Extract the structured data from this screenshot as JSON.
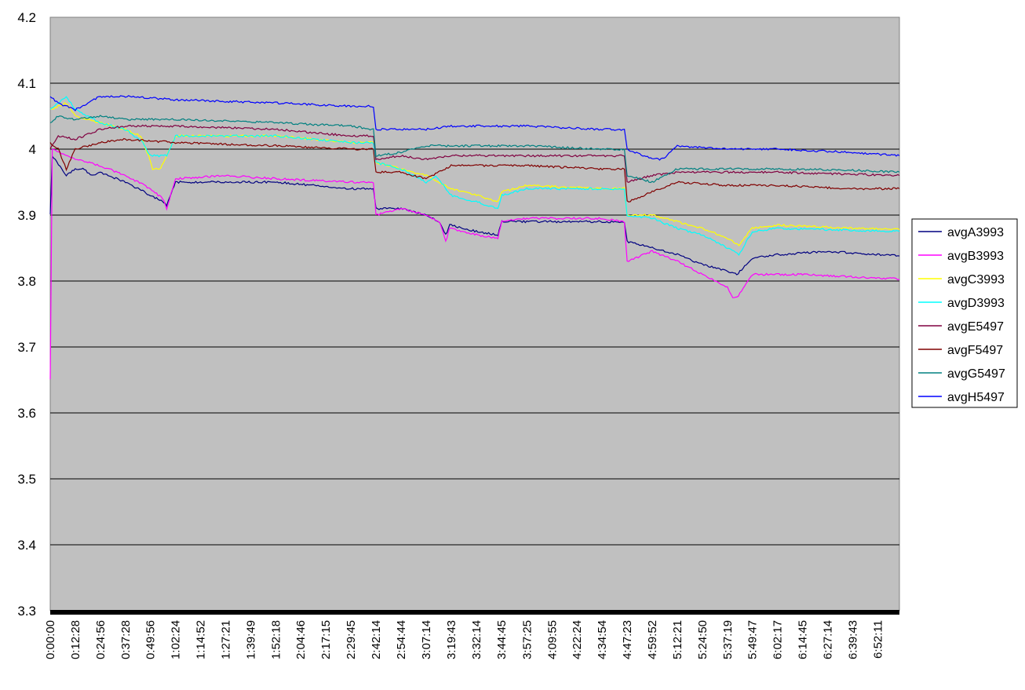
{
  "chart_data": {
    "type": "line",
    "title": "",
    "xlabel": "",
    "ylabel": "",
    "ylim": [
      3.3,
      4.2
    ],
    "y_ticks": [
      "4.2",
      "4.1",
      "4",
      "3.9",
      "3.8",
      "3.7",
      "3.6",
      "3.5",
      "3.4",
      "3.3"
    ],
    "y_tick_values": [
      4.2,
      4.1,
      4.0,
      3.9,
      3.8,
      3.7,
      3.6,
      3.5,
      3.4,
      3.3
    ],
    "x_ticks": [
      "0:00:00",
      "0:12:28",
      "0:24:56",
      "0:37:28",
      "0:49:56",
      "1:02:24",
      "1:14:52",
      "1:27:21",
      "1:39:49",
      "1:52:18",
      "2:04:46",
      "2:17:15",
      "2:29:45",
      "2:42:14",
      "2:54:44",
      "3:07:14",
      "3:19:43",
      "3:32:14",
      "3:44:45",
      "3:57:25",
      "4:09:55",
      "4:22:24",
      "4:34:54",
      "4:47:23",
      "4:59:52",
      "5:12:21",
      "5:24:50",
      "5:37:19",
      "5:49:47",
      "6:02:17",
      "6:14:45",
      "6:27:14",
      "6:39:43",
      "6:52:11"
    ],
    "x_end": "7:03:00",
    "grid": "horizontal",
    "plot_background": "#c0c0c0",
    "legend_position": "right",
    "series": [
      {
        "name": "avgA3993",
        "color": "#000080",
        "x": [
          "0:00:00",
          "0:01:00",
          "0:08:00",
          "0:12:28",
          "0:17:00",
          "0:20:00",
          "0:24:56",
          "0:37:28",
          "0:49:56",
          "0:56:00",
          "0:58:00",
          "1:02:24",
          "1:14:52",
          "1:52:18",
          "2:29:45",
          "2:41:00",
          "2:42:14",
          "2:54:44",
          "3:07:14",
          "3:14:00",
          "3:17:00",
          "3:19:00",
          "3:32:14",
          "3:43:00",
          "3:45:00",
          "3:57:25",
          "4:34:54",
          "4:46:00",
          "4:47:23",
          "4:59:52",
          "5:12:21",
          "5:24:50",
          "5:37:19",
          "5:42:00",
          "5:49:47",
          "6:02:17",
          "6:27:14",
          "7:03:00"
        ],
        "y": [
          3.9,
          3.99,
          3.96,
          3.97,
          3.97,
          3.96,
          3.965,
          3.95,
          3.93,
          3.92,
          3.915,
          3.95,
          3.95,
          3.95,
          3.94,
          3.94,
          3.91,
          3.91,
          3.9,
          3.89,
          3.87,
          3.885,
          3.875,
          3.87,
          3.89,
          3.89,
          3.89,
          3.89,
          3.86,
          3.85,
          3.84,
          3.825,
          3.815,
          3.81,
          3.835,
          3.84,
          3.845,
          3.838
        ]
      },
      {
        "name": "avgB3993",
        "color": "#ff00ff",
        "x": [
          "0:00:00",
          "0:01:00",
          "0:08:00",
          "0:12:28",
          "0:24:56",
          "0:37:28",
          "0:49:56",
          "0:56:00",
          "0:58:00",
          "1:02:24",
          "1:27:21",
          "1:52:18",
          "2:29:45",
          "2:41:00",
          "2:42:14",
          "2:54:44",
          "3:07:14",
          "3:14:00",
          "3:17:00",
          "3:19:00",
          "3:32:14",
          "3:43:00",
          "3:45:00",
          "3:57:25",
          "4:34:54",
          "4:46:00",
          "4:47:23",
          "4:59:52",
          "5:12:21",
          "5:24:50",
          "5:37:19",
          "5:40:00",
          "5:42:00",
          "5:49:47",
          "6:14:45",
          "7:03:00"
        ],
        "y": [
          3.65,
          4.0,
          3.99,
          3.985,
          3.975,
          3.96,
          3.94,
          3.925,
          3.91,
          3.955,
          3.96,
          3.955,
          3.95,
          3.95,
          3.9,
          3.91,
          3.9,
          3.89,
          3.86,
          3.88,
          3.87,
          3.865,
          3.89,
          3.895,
          3.895,
          3.89,
          3.83,
          3.845,
          3.83,
          3.81,
          3.79,
          3.775,
          3.775,
          3.81,
          3.81,
          3.803
        ]
      },
      {
        "name": "avgC3993",
        "color": "#ffff00",
        "x": [
          "0:00:00",
          "0:08:00",
          "0:12:28",
          "0:24:56",
          "0:37:28",
          "0:45:00",
          "0:49:00",
          "0:51:00",
          "0:55:00",
          "0:58:00",
          "1:02:24",
          "1:14:52",
          "1:52:18",
          "2:29:45",
          "2:41:00",
          "2:42:14",
          "2:54:44",
          "3:07:14",
          "3:19:43",
          "3:32:14",
          "3:43:00",
          "3:45:00",
          "3:57:25",
          "4:34:54",
          "4:46:00",
          "4:47:23",
          "4:59:52",
          "5:12:21",
          "5:24:50",
          "5:37:19",
          "5:43:00",
          "5:49:47",
          "6:02:17",
          "6:39:43",
          "7:03:00"
        ],
        "y": [
          4.06,
          4.07,
          4.05,
          4.04,
          4.03,
          4.02,
          3.99,
          3.97,
          3.97,
          3.99,
          4.02,
          4.02,
          4.02,
          4.01,
          4.01,
          3.98,
          3.97,
          3.96,
          3.94,
          3.93,
          3.92,
          3.935,
          3.945,
          3.94,
          3.94,
          3.9,
          3.9,
          3.89,
          3.88,
          3.865,
          3.855,
          3.88,
          3.885,
          3.88,
          3.878
        ]
      },
      {
        "name": "avgD3993",
        "color": "#00ffff",
        "x": [
          "0:00:00",
          "0:08:00",
          "0:12:28",
          "0:24:56",
          "0:37:28",
          "0:46:00",
          "0:49:56",
          "0:51:00",
          "0:55:00",
          "0:58:00",
          "1:02:24",
          "1:14:52",
          "1:52:18",
          "2:29:45",
          "2:41:00",
          "2:42:14",
          "2:54:44",
          "3:07:14",
          "3:12:00",
          "3:19:43",
          "3:32:14",
          "3:43:00",
          "3:45:00",
          "3:57:25",
          "4:34:54",
          "4:46:00",
          "4:47:23",
          "4:59:52",
          "5:12:21",
          "5:24:50",
          "5:37:19",
          "5:43:00",
          "5:49:47",
          "6:02:17",
          "6:39:43",
          "7:03:00"
        ],
        "y": [
          4.06,
          4.08,
          4.06,
          4.04,
          4.03,
          4.01,
          3.99,
          3.99,
          3.99,
          3.99,
          4.02,
          4.02,
          4.02,
          4.01,
          4.01,
          3.98,
          3.97,
          3.95,
          3.96,
          3.93,
          3.92,
          3.91,
          3.93,
          3.94,
          3.94,
          3.94,
          3.9,
          3.895,
          3.88,
          3.87,
          3.85,
          3.84,
          3.875,
          3.88,
          3.877,
          3.875
        ]
      },
      {
        "name": "avgE5497",
        "color": "#800040",
        "x": [
          "0:00:00",
          "0:04:00",
          "0:12:28",
          "0:24:56",
          "0:37:28",
          "1:02:24",
          "1:52:18",
          "2:29:45",
          "2:41:00",
          "2:42:14",
          "2:54:44",
          "3:07:14",
          "3:19:43",
          "3:57:25",
          "4:34:54",
          "4:46:00",
          "4:47:23",
          "4:59:52",
          "5:12:21",
          "5:37:19",
          "6:02:17",
          "6:39:43",
          "7:03:00"
        ],
        "y": [
          4.0,
          4.02,
          4.015,
          4.03,
          4.035,
          4.035,
          4.03,
          4.02,
          4.02,
          3.985,
          3.99,
          3.985,
          3.99,
          3.99,
          3.99,
          3.99,
          3.95,
          3.96,
          3.965,
          3.965,
          3.965,
          3.962,
          3.96
        ]
      },
      {
        "name": "avgF5497",
        "color": "#800000",
        "x": [
          "0:00:00",
          "0:04:00",
          "0:08:00",
          "0:12:28",
          "0:24:56",
          "0:37:28",
          "1:02:24",
          "1:52:18",
          "2:29:45",
          "2:41:00",
          "2:42:14",
          "2:54:44",
          "3:07:14",
          "3:19:43",
          "3:57:25",
          "4:34:54",
          "4:46:00",
          "4:47:23",
          "4:59:52",
          "5:12:21",
          "5:37:19",
          "6:02:17",
          "6:39:43",
          "7:03:00"
        ],
        "y": [
          4.01,
          4.0,
          3.97,
          4.0,
          4.01,
          4.015,
          4.01,
          4.005,
          4.0,
          4.0,
          3.965,
          3.965,
          3.955,
          3.975,
          3.975,
          3.97,
          3.97,
          3.92,
          3.935,
          3.95,
          3.945,
          3.945,
          3.94,
          3.94
        ]
      },
      {
        "name": "avgG5497",
        "color": "#008080",
        "x": [
          "0:00:00",
          "0:04:00",
          "0:12:28",
          "0:24:56",
          "0:37:28",
          "1:02:24",
          "1:52:18",
          "2:29:45",
          "2:41:00",
          "2:42:14",
          "2:54:44",
          "3:07:14",
          "3:19:43",
          "3:57:25",
          "4:34:54",
          "4:46:00",
          "4:47:23",
          "4:59:52",
          "5:12:21",
          "5:37:19",
          "6:02:17",
          "6:39:43",
          "7:03:00"
        ],
        "y": [
          4.04,
          4.05,
          4.045,
          4.05,
          4.045,
          4.045,
          4.04,
          4.035,
          4.03,
          3.99,
          3.995,
          4.005,
          4.005,
          4.005,
          4.0,
          4.0,
          3.96,
          3.95,
          3.97,
          3.97,
          3.97,
          3.968,
          3.965
        ]
      },
      {
        "name": "avgH5497",
        "color": "#0000ff",
        "x": [
          "0:00:00",
          "0:04:00",
          "0:12:28",
          "0:24:56",
          "0:37:28",
          "1:02:24",
          "1:52:18",
          "2:29:45",
          "2:41:00",
          "2:42:14",
          "2:54:44",
          "3:07:14",
          "3:19:43",
          "3:57:25",
          "4:34:54",
          "4:46:00",
          "4:47:23",
          "4:59:52",
          "5:05:00",
          "5:12:21",
          "5:37:19",
          "6:02:17",
          "6:39:43",
          "7:03:00"
        ],
        "y": [
          4.08,
          4.07,
          4.06,
          4.08,
          4.08,
          4.075,
          4.07,
          4.065,
          4.065,
          4.03,
          4.03,
          4.03,
          4.035,
          4.035,
          4.03,
          4.03,
          4.0,
          3.985,
          3.985,
          4.005,
          4.0,
          4.0,
          3.995,
          3.99
        ]
      }
    ]
  }
}
